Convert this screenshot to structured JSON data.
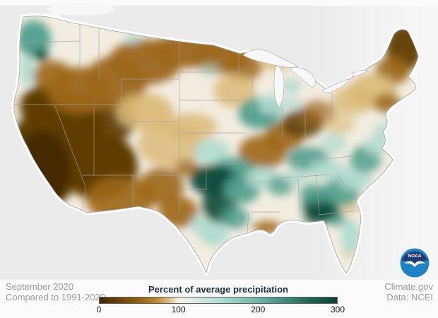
{
  "annotations": {
    "period_line1": "September 2020",
    "period_line2": "Compared to 1991-2020",
    "credit_line1": "Climate.gov",
    "credit_line2": "Data: NCEI"
  },
  "legend": {
    "title": "Percent of average precipitation",
    "ticks": [
      {
        "label": "0",
        "pct": 0
      },
      {
        "label": "100",
        "pct": 33.33
      },
      {
        "label": "200",
        "pct": 66.67
      },
      {
        "label": "300",
        "pct": 100
      }
    ],
    "gradient": [
      [
        0,
        "#3f2902"
      ],
      [
        8,
        "#6a4307"
      ],
      [
        16,
        "#8f5d10"
      ],
      [
        24,
        "#b98a33"
      ],
      [
        29,
        "#d9bd7e"
      ],
      [
        33.3,
        "#f7f3e4"
      ],
      [
        38,
        "#e0efe9"
      ],
      [
        48,
        "#bfe1d6"
      ],
      [
        58,
        "#93cabb"
      ],
      [
        66.7,
        "#6fb5a4"
      ],
      [
        78,
        "#3f8d79"
      ],
      [
        89,
        "#1c6450"
      ],
      [
        100,
        "#0a4434"
      ]
    ]
  },
  "logo": {
    "org": "NOAA",
    "navy": "#203a72",
    "blue": "#1d83c4"
  },
  "map": {
    "ocean_color": "#ebebeb",
    "land_neutral": "#f2ede0",
    "state_border_color": "#a3a3a3",
    "palette": {
      "xd": "#432a02",
      "db": "#5e3c06",
      "b": "#9c671a",
      "t": "#d9b873",
      "lt": "#aedacf",
      "mt": "#4f9f8c",
      "dt": "#0b4a39"
    },
    "blobs": [
      [
        62,
        225,
        52,
        70,
        "db",
        1
      ],
      [
        95,
        180,
        55,
        50,
        "db",
        1
      ],
      [
        140,
        235,
        55,
        48,
        "db",
        1
      ],
      [
        60,
        150,
        32,
        28,
        "db",
        1
      ],
      [
        150,
        172,
        42,
        30,
        "db",
        0.9
      ],
      [
        60,
        240,
        40,
        55,
        "xd",
        0.9
      ],
      [
        170,
        282,
        48,
        32,
        "b",
        0.9
      ],
      [
        112,
        128,
        45,
        33,
        "b",
        0.95
      ],
      [
        75,
        108,
        28,
        22,
        "b",
        0.9
      ],
      [
        162,
        118,
        45,
        38,
        "b",
        0.95
      ],
      [
        205,
        88,
        52,
        32,
        "b",
        0.95
      ],
      [
        262,
        72,
        52,
        24,
        "b",
        0.95
      ],
      [
        312,
        80,
        42,
        24,
        "b",
        0.95
      ],
      [
        345,
        95,
        26,
        20,
        "b",
        0.85
      ],
      [
        205,
        158,
        40,
        26,
        "t",
        0.9
      ],
      [
        240,
        205,
        45,
        32,
        "t",
        0.8
      ],
      [
        270,
        180,
        38,
        20,
        "t",
        0.8
      ],
      [
        228,
        264,
        32,
        26,
        "b",
        0.9
      ],
      [
        252,
        300,
        28,
        22,
        "b",
        0.9
      ],
      [
        265,
        238,
        18,
        12,
        "b",
        0.8
      ],
      [
        332,
        128,
        30,
        24,
        "t",
        0.8
      ],
      [
        372,
        215,
        34,
        24,
        "b",
        0.9
      ],
      [
        402,
        193,
        28,
        20,
        "b",
        0.9
      ],
      [
        428,
        175,
        30,
        20,
        "db",
        0.85
      ],
      [
        450,
        160,
        25,
        18,
        "b",
        0.7
      ],
      [
        572,
        68,
        26,
        34,
        "db",
        0.95
      ],
      [
        556,
        100,
        24,
        20,
        "b",
        0.9
      ],
      [
        528,
        128,
        34,
        24,
        "t",
        0.85
      ],
      [
        548,
        146,
        20,
        14,
        "b",
        0.85
      ],
      [
        500,
        142,
        30,
        20,
        "t",
        0.8
      ],
      [
        378,
        322,
        20,
        9,
        "b",
        0.9
      ],
      [
        390,
        90,
        22,
        9,
        "t",
        0.8
      ],
      [
        480,
        175,
        22,
        15,
        "t",
        0.6
      ],
      [
        495,
        293,
        12,
        9,
        "t",
        0.7
      ],
      [
        494,
        356,
        8,
        9,
        "t",
        0.7
      ],
      [
        48,
        55,
        24,
        26,
        "mt",
        0.95
      ],
      [
        58,
        78,
        11,
        9,
        "dt",
        0.9
      ],
      [
        38,
        100,
        10,
        22,
        "lt",
        0.9
      ],
      [
        188,
        55,
        10,
        7,
        "lt",
        0.9
      ],
      [
        367,
        160,
        30,
        22,
        "mt",
        0.95
      ],
      [
        385,
        148,
        20,
        14,
        "lt",
        0.9
      ],
      [
        300,
        215,
        26,
        18,
        "lt",
        0.85
      ],
      [
        330,
        245,
        32,
        22,
        "mt",
        0.95
      ],
      [
        303,
        255,
        34,
        22,
        "dt",
        0.95
      ],
      [
        310,
        290,
        24,
        26,
        "dt",
        0.9
      ],
      [
        342,
        268,
        26,
        20,
        "mt",
        0.9
      ],
      [
        332,
        308,
        20,
        16,
        "mt",
        0.85
      ],
      [
        303,
        332,
        20,
        17,
        "lt",
        0.9
      ],
      [
        283,
        318,
        14,
        14,
        "lt",
        0.8
      ],
      [
        372,
        252,
        24,
        16,
        "lt",
        0.85
      ],
      [
        397,
        263,
        18,
        14,
        "mt",
        0.8
      ],
      [
        436,
        225,
        30,
        17,
        "mt",
        0.9
      ],
      [
        462,
        240,
        25,
        15,
        "lt",
        0.85
      ],
      [
        420,
        250,
        18,
        12,
        "lt",
        0.8
      ],
      [
        452,
        290,
        24,
        18,
        "dt",
        0.95
      ],
      [
        466,
        302,
        17,
        12,
        "dt",
        0.9
      ],
      [
        448,
        308,
        18,
        10,
        "dt",
        0.8
      ],
      [
        444,
        274,
        20,
        14,
        "mt",
        0.85
      ],
      [
        483,
        272,
        26,
        20,
        "mt",
        0.9
      ],
      [
        502,
        252,
        24,
        17,
        "lt",
        0.9
      ],
      [
        517,
        227,
        22,
        17,
        "mt",
        0.85
      ],
      [
        512,
        214,
        10,
        8,
        "mt",
        0.8
      ],
      [
        532,
        206,
        18,
        13,
        "lt",
        0.85
      ],
      [
        543,
        186,
        14,
        11,
        "lt",
        0.8
      ],
      [
        497,
        335,
        14,
        24,
        "lt",
        0.9
      ],
      [
        478,
        312,
        13,
        9,
        "mt",
        0.7
      ],
      [
        472,
        203,
        20,
        14,
        "lt",
        0.7
      ],
      [
        412,
        122,
        14,
        11,
        "lt",
        0.8
      ],
      [
        416,
        146,
        11,
        9,
        "lt",
        0.7
      ],
      [
        296,
        98,
        14,
        9,
        "lt",
        0.6
      ],
      [
        558,
        170,
        10,
        8,
        "lt",
        0.7
      ]
    ]
  }
}
